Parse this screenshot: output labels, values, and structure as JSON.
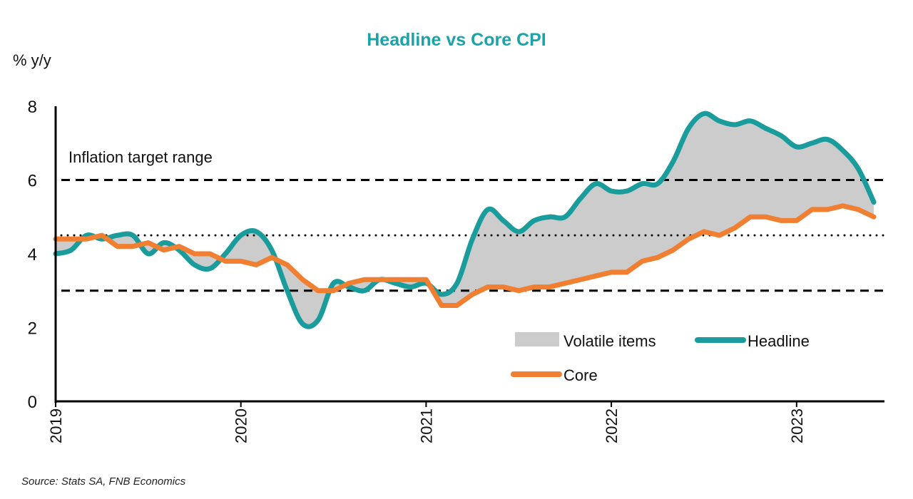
{
  "chart_data": {
    "type": "line",
    "title": "Headline vs Core CPI",
    "ylabel": "% y/y",
    "ylim": [
      0,
      8
    ],
    "yticks": [
      0,
      2,
      4,
      6,
      8
    ],
    "xticks": [
      "2019",
      "2020",
      "2021",
      "2022",
      "2023"
    ],
    "x_start": "2019-01",
    "x_frequency": "monthly",
    "annotation": "Inflation target range",
    "reference_lines": [
      {
        "value": 3,
        "style": "dashed"
      },
      {
        "value": 6,
        "style": "dashed"
      },
      {
        "value": 4.5,
        "style": "dotted"
      }
    ],
    "series": [
      {
        "name": "Headline",
        "color": "#1a9c9c",
        "values": [
          4.0,
          4.1,
          4.5,
          4.4,
          4.5,
          4.5,
          4.0,
          4.3,
          4.1,
          3.7,
          3.6,
          4.0,
          4.5,
          4.6,
          4.1,
          3.0,
          2.1,
          2.2,
          3.2,
          3.1,
          3.0,
          3.3,
          3.2,
          3.1,
          3.2,
          2.9,
          3.2,
          4.4,
          5.2,
          4.9,
          4.6,
          4.9,
          5.0,
          5.0,
          5.5,
          5.9,
          5.7,
          5.7,
          5.9,
          5.9,
          6.5,
          7.4,
          7.8,
          7.6,
          7.5,
          7.6,
          7.4,
          7.2,
          6.9,
          7.0,
          7.1,
          6.8,
          6.3,
          5.4
        ]
      },
      {
        "name": "Core",
        "color": "#f07f32",
        "values": [
          4.4,
          4.4,
          4.4,
          4.5,
          4.2,
          4.2,
          4.3,
          4.1,
          4.2,
          4.0,
          4.0,
          3.8,
          3.8,
          3.7,
          3.9,
          3.7,
          3.3,
          3.0,
          3.0,
          3.2,
          3.3,
          3.3,
          3.3,
          3.3,
          3.3,
          2.6,
          2.6,
          2.9,
          3.1,
          3.1,
          3.0,
          3.1,
          3.1,
          3.2,
          3.3,
          3.4,
          3.5,
          3.5,
          3.8,
          3.9,
          4.1,
          4.4,
          4.6,
          4.5,
          4.7,
          5.0,
          5.0,
          4.9,
          4.9,
          5.2,
          5.2,
          5.3,
          5.2,
          5.0
        ]
      }
    ],
    "fill_between": {
      "name": "Volatile items",
      "color": "#cccccc"
    },
    "legend": [
      "Volatile items",
      "Headline",
      "Core"
    ],
    "legend_placement": "bottom-right",
    "grid": false
  },
  "source": "Source: Stats SA, FNB Economics"
}
